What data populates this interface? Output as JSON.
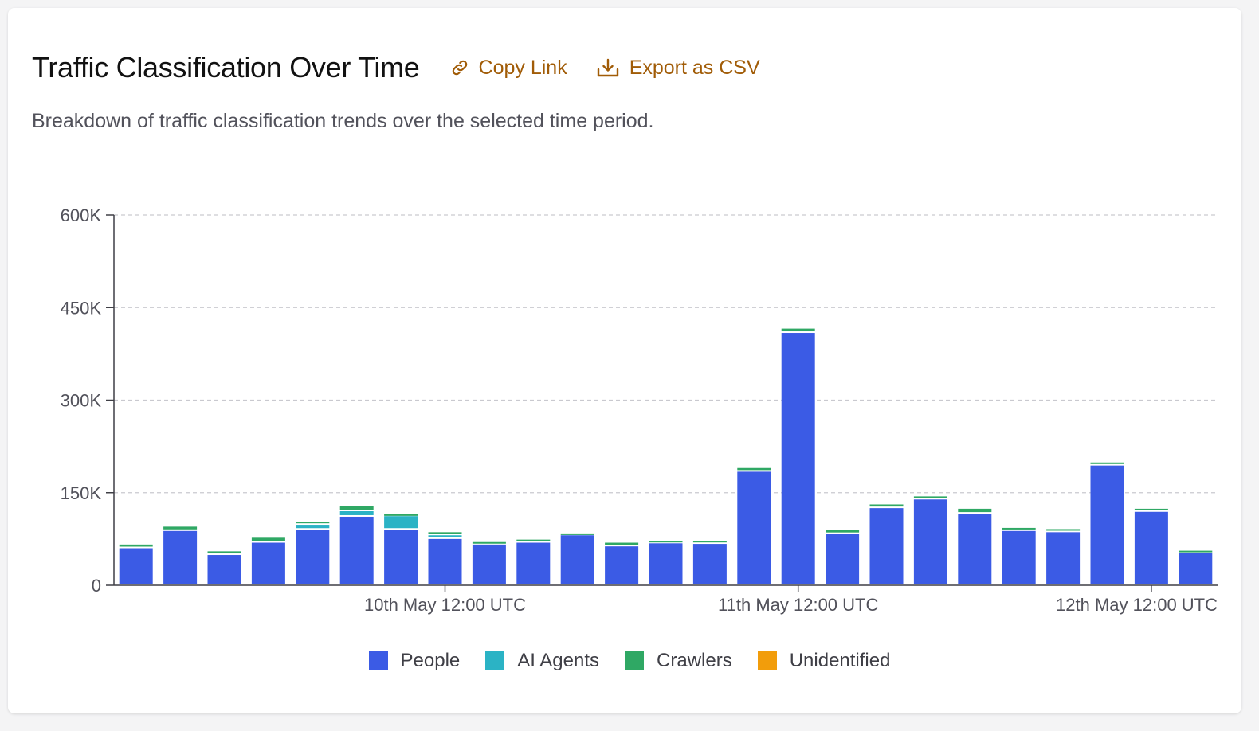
{
  "header": {
    "title": "Traffic Classification Over Time",
    "copy_link_label": "Copy Link",
    "export_label": "Export as CSV",
    "subtitle": "Breakdown of traffic classification trends over the selected time period."
  },
  "colors": {
    "accent": "#a15c07",
    "people": "#3b5be5",
    "ai_agents": "#2bb3c5",
    "crawlers": "#2fa864",
    "unidentified": "#f29d0b"
  },
  "chart_data": {
    "type": "bar",
    "stacked": true,
    "ylim": [
      0,
      600000
    ],
    "y_ticks": [
      0,
      150000,
      300000,
      450000,
      600000
    ],
    "y_tick_labels": [
      "0",
      "150K",
      "300K",
      "450K",
      "600K"
    ],
    "x_tick_labels": [
      {
        "label": "10th May 12:00 UTC",
        "at_index": 7.5
      },
      {
        "label": "11th May 12:00 UTC",
        "at_index": 15.5
      },
      {
        "label": "12th May 12:00 UTC",
        "at_index": 23.5
      }
    ],
    "grid": true,
    "legend_position": "bottom",
    "series": [
      {
        "name": "People",
        "color": "#3b5be5",
        "values": [
          60000,
          88000,
          49000,
          69000,
          90000,
          111000,
          90000,
          75000,
          66000,
          69000,
          81000,
          63000,
          68000,
          67000,
          184000,
          409000,
          83000,
          125000,
          139000,
          116000,
          88000,
          86000,
          194000,
          119000,
          52000
        ]
      },
      {
        "name": "AI Agents",
        "color": "#2bb3c5",
        "values": [
          0,
          0,
          0,
          0,
          8000,
          9000,
          22000,
          6000,
          0,
          0,
          0,
          0,
          0,
          0,
          0,
          0,
          0,
          0,
          0,
          0,
          0,
          0,
          0,
          0,
          0
        ]
      },
      {
        "name": "Crawlers",
        "color": "#2fa864",
        "values": [
          6000,
          7000,
          6000,
          8000,
          5000,
          8000,
          3000,
          5000,
          4000,
          5000,
          3000,
          6000,
          4000,
          5000,
          6000,
          7000,
          7000,
          6000,
          5000,
          8000,
          5000,
          5000,
          5000,
          5000,
          4000
        ]
      },
      {
        "name": "Unidentified",
        "color": "#f29d0b",
        "values": [
          0,
          0,
          0,
          0,
          0,
          0,
          0,
          0,
          0,
          0,
          0,
          0,
          0,
          0,
          0,
          0,
          0,
          0,
          0,
          0,
          0,
          0,
          0,
          0,
          0
        ]
      }
    ]
  }
}
